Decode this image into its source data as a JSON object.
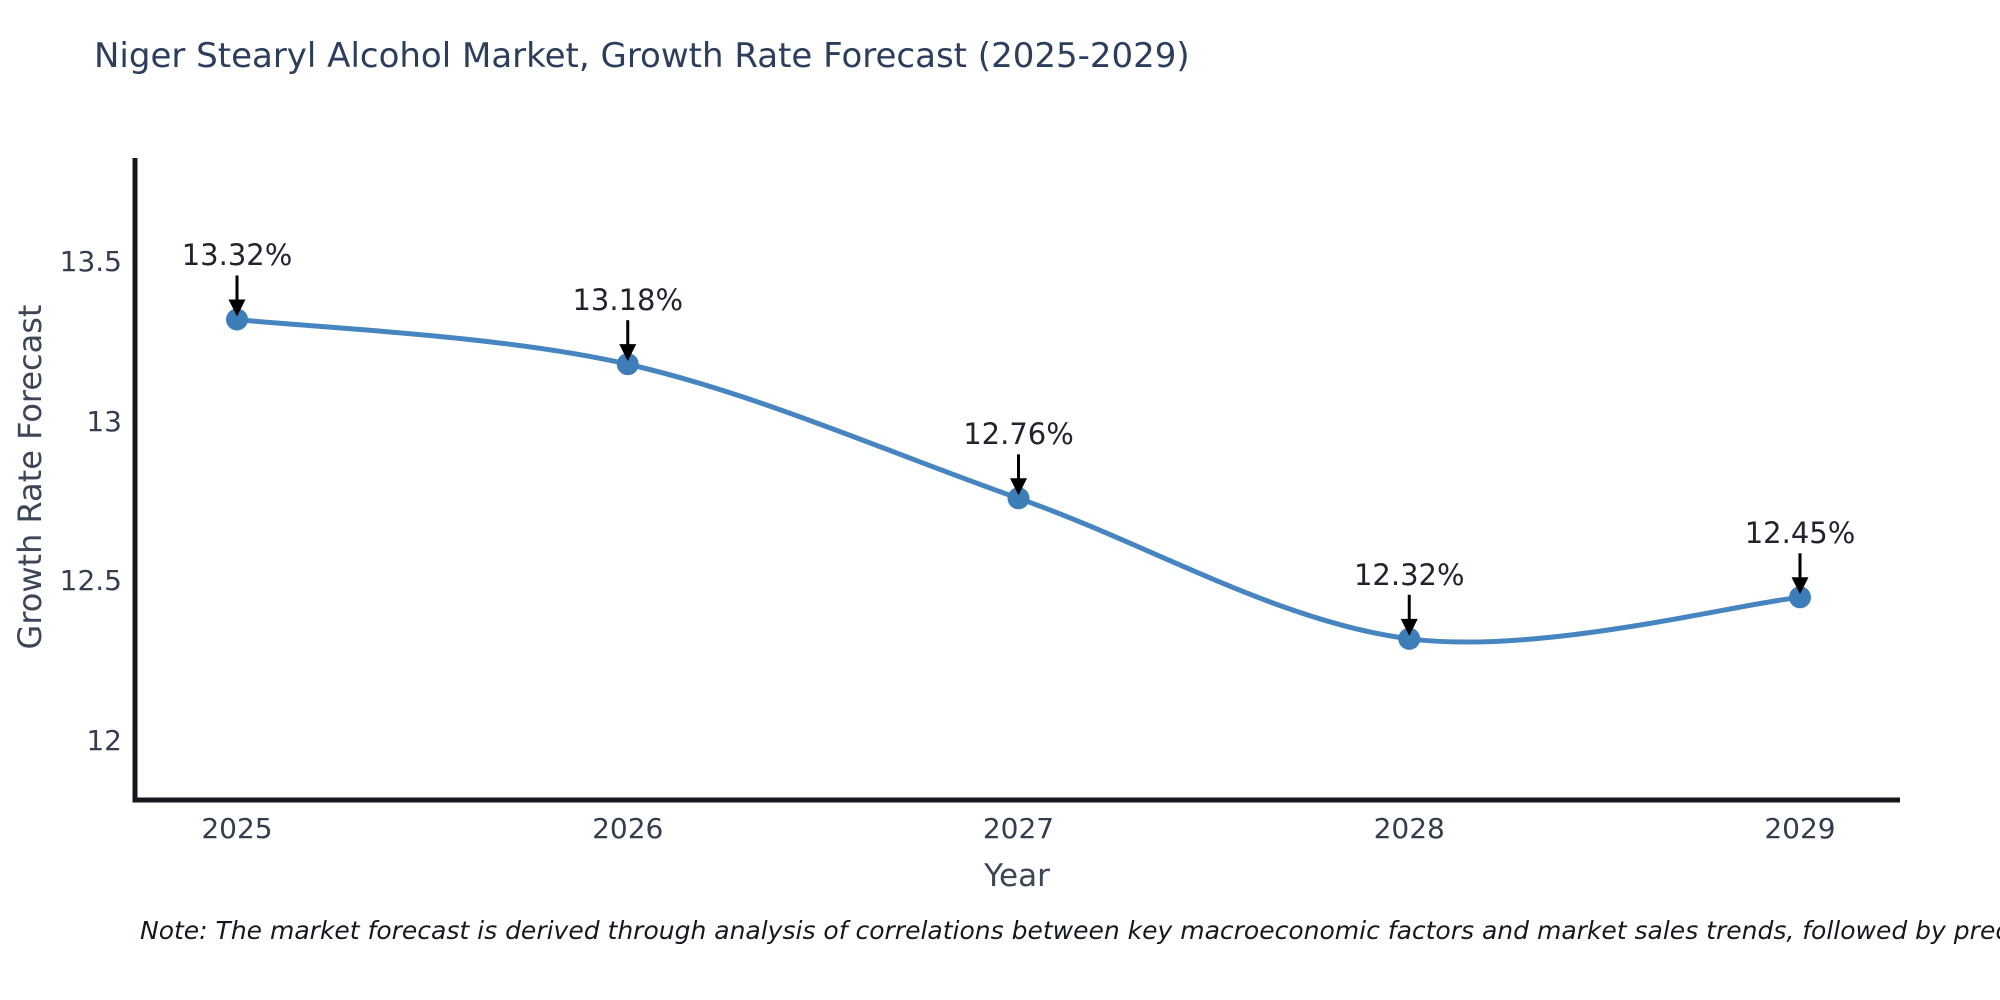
{
  "chart": {
    "title": "Niger Stearyl Alcohol Market, Growth Rate Forecast (2025-2029)",
    "x_axis_label": "Year",
    "y_axis_label": "Growth Rate Forecast",
    "note": "Note: The market forecast is derived through analysis of correlations between key macroeconomic factors and market sales trends, followed by predictive modeling to project future sal"
  },
  "chart_data": {
    "type": "line",
    "categories": [
      "2025",
      "2026",
      "2027",
      "2028",
      "2029"
    ],
    "values": [
      13.32,
      13.18,
      12.76,
      12.32,
      12.45
    ],
    "point_labels": [
      "13.32%",
      "13.18%",
      "12.76%",
      "12.32%",
      "12.45%"
    ],
    "series": [
      {
        "name": "Growth Rate Forecast",
        "values": [
          13.32,
          13.18,
          12.76,
          12.32,
          12.45
        ]
      }
    ],
    "title": "Niger Stearyl Alcohol Market, Growth Rate Forecast (2025-2029)",
    "xlabel": "Year",
    "ylabel": "Growth Rate Forecast",
    "ylim": [
      11.8,
      13.8
    ],
    "yticks": [
      13.5,
      13.0,
      12.5,
      12.0
    ],
    "ytick_labels": [
      "13.5",
      "13",
      "12.5",
      "12"
    ],
    "line_shape": "spline",
    "grid": false,
    "legend_position": "none",
    "annotation_arrows": "down-to-point",
    "colors": {
      "line": "#4685bf",
      "marker": "#3d7db8",
      "axis_spine": "#16161f",
      "arrow": "#000000",
      "tick_text": "#333d4d",
      "annotation_text": "#20242e",
      "title_text": "#2c3e5c"
    }
  }
}
